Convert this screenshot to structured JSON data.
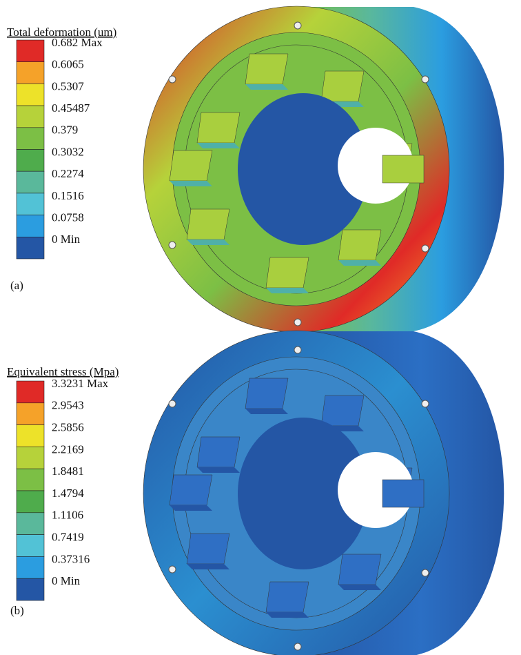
{
  "panels": [
    {
      "title": "Total deformation (um)",
      "legend": {
        "labels": [
          "0.682 Max",
          "0.6065",
          "0.5307",
          "0.45487",
          "0.379",
          "0.3032",
          "0.2274",
          "0.1516",
          "0.0758",
          "0 Min"
        ],
        "colors": [
          "#e02a27",
          "#f5a229",
          "#ede229",
          "#b6d23a",
          "#7cbf45",
          "#4fac4c",
          "#5ab89b",
          "#52c2d6",
          "#2b9de0",
          "#2456a5"
        ]
      },
      "label": "(a)"
    },
    {
      "title": "Equivalent stress (Mpa)",
      "legend": {
        "labels": [
          "3.3231 Max",
          "2.9543",
          "2.5856",
          "2.2169",
          "1.8481",
          "1.4794",
          "1.1106",
          "0.7419",
          "0.37316",
          "0 Min"
        ],
        "colors": [
          "#e02a27",
          "#f5a229",
          "#ede229",
          "#b6d23a",
          "#7cbf45",
          "#4fac4c",
          "#5ab89b",
          "#52c2d6",
          "#2b9de0",
          "#2456a5"
        ]
      },
      "label": "(b)"
    }
  ]
}
